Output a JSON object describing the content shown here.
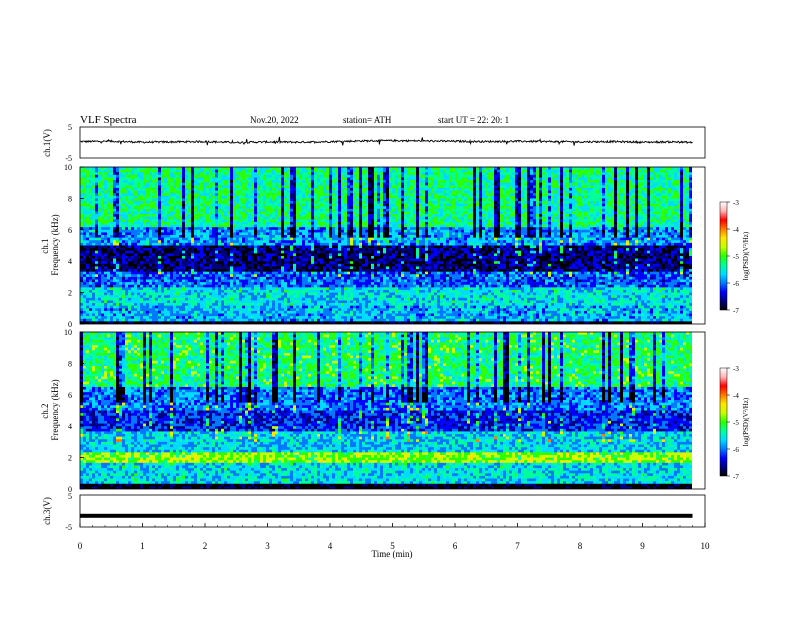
{
  "header": {
    "title": "VLF  Spectra",
    "date": "Nov.20, 2022",
    "station": "station= ATH",
    "start": "start  UT  =    22: 20: 1"
  },
  "colors": {
    "colormap": [
      "#000000",
      "#00007f",
      "#0000ff",
      "#0078ff",
      "#00dcff",
      "#00ff9b",
      "#2dff00",
      "#c8ff00",
      "#ffe600",
      "#ff7800",
      "#ff0000",
      "#ffb4b4",
      "#ffffff"
    ],
    "trace": "#000000",
    "axis": "#000000"
  },
  "chart_data": [
    {
      "type": "line",
      "panel": "ch1-waveform",
      "ylabel": "ch.1(V)",
      "ylim": [
        -5,
        5
      ],
      "yticks": [
        "5",
        "-5"
      ],
      "x": [
        0,
        0.5,
        1,
        1.5,
        2,
        2.5,
        3,
        3.5,
        4,
        4.5,
        5,
        5.5,
        6,
        6.5,
        7,
        7.5,
        8,
        8.5,
        9,
        9.5,
        9.8
      ],
      "values": [
        0.3,
        0.4,
        0.1,
        0.2,
        0.3,
        0.0,
        0.2,
        0.1,
        0.3,
        0.5,
        0.6,
        0.5,
        0.4,
        0.3,
        0.4,
        0.3,
        0.2,
        0.3,
        0.1,
        0.2,
        0.0
      ],
      "xlim": [
        0,
        10
      ]
    },
    {
      "type": "heatmap",
      "panel": "ch1-spectrogram",
      "ylabel": "ch.1\nFrequency (kHz)",
      "ylim": [
        0,
        10
      ],
      "yticks": [
        "0",
        "2",
        "4",
        "6",
        "8",
        "10"
      ],
      "xlim": [
        0,
        10
      ],
      "freq_bands_khz": [
        {
          "from": 0,
          "to": 0.25,
          "log_psd": -7
        },
        {
          "from": 0.25,
          "to": 1.2,
          "log_psd": -5.8
        },
        {
          "from": 1.2,
          "to": 2.3,
          "log_psd": -5.6
        },
        {
          "from": 2.3,
          "to": 3.4,
          "log_psd": -6.1
        },
        {
          "from": 3.4,
          "to": 5.0,
          "log_psd": -6.7
        },
        {
          "from": 5.0,
          "to": 6.2,
          "log_psd": -5.9
        },
        {
          "from": 6.2,
          "to": 10,
          "log_psd": -5.3
        }
      ],
      "colorbar": {
        "label": "log(PSD)(V²/Hz)",
        "ticks": [
          "-3",
          "-4",
          "-5",
          "-6",
          "-7"
        ],
        "range": [
          -7,
          -3
        ]
      }
    },
    {
      "type": "heatmap",
      "panel": "ch2-spectrogram",
      "ylabel": "ch.2\nFrequency (kHz)",
      "ylim": [
        0,
        10
      ],
      "yticks": [
        "0",
        "2",
        "4",
        "6",
        "8",
        "10"
      ],
      "xlim": [
        0,
        10
      ],
      "freq_bands_khz": [
        {
          "from": 0,
          "to": 0.3,
          "log_psd": -7
        },
        {
          "from": 0.3,
          "to": 1.7,
          "log_psd": -5.6
        },
        {
          "from": 1.7,
          "to": 2.3,
          "log_psd": -4.8
        },
        {
          "from": 2.3,
          "to": 3.6,
          "log_psd": -5.7
        },
        {
          "from": 3.6,
          "to": 5.0,
          "log_psd": -6.3
        },
        {
          "from": 5.0,
          "to": 6.5,
          "log_psd": -6.0
        },
        {
          "from": 6.5,
          "to": 10,
          "log_psd": -5.2
        }
      ],
      "colorbar": {
        "label": "log(PSD)(V²/Hz)",
        "ticks": [
          "-3",
          "-4",
          "-5",
          "-6",
          "-7"
        ],
        "range": [
          -7,
          -3
        ]
      }
    },
    {
      "type": "line",
      "panel": "ch3-waveform",
      "ylabel": "ch.3(V)",
      "ylim": [
        -5,
        5
      ],
      "yticks": [
        "5",
        "0",
        "-5"
      ],
      "x": [
        0,
        9.8
      ],
      "values": [
        -1.5,
        -1.5
      ],
      "xlim": [
        0,
        10
      ],
      "xlabel": "Time  (min)",
      "xticks": [
        "0",
        "1",
        "2",
        "3",
        "4",
        "5",
        "6",
        "7",
        "8",
        "9",
        "10"
      ]
    }
  ]
}
